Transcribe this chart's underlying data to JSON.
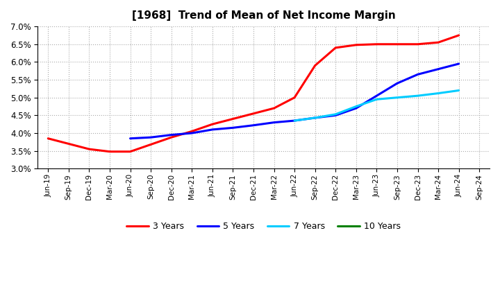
{
  "title": "[1968]  Trend of Mean of Net Income Margin",
  "x_labels": [
    "Jun-19",
    "Sep-19",
    "Dec-19",
    "Mar-20",
    "Jun-20",
    "Sep-20",
    "Dec-20",
    "Mar-21",
    "Jun-21",
    "Sep-21",
    "Dec-21",
    "Mar-22",
    "Jun-22",
    "Sep-22",
    "Dec-22",
    "Mar-23",
    "Jun-23",
    "Sep-23",
    "Dec-23",
    "Mar-24",
    "Jun-24",
    "Sep-24"
  ],
  "ylim": [
    0.03,
    0.07
  ],
  "yticks": [
    0.03,
    0.035,
    0.04,
    0.045,
    0.05,
    0.055,
    0.06,
    0.065,
    0.07
  ],
  "series": {
    "3 Years": {
      "color": "#FF0000",
      "values": [
        0.0385,
        0.037,
        0.0355,
        0.0348,
        0.0348,
        0.0368,
        0.0388,
        0.0405,
        0.0425,
        0.044,
        0.0455,
        0.047,
        0.05,
        0.059,
        0.064,
        0.0648,
        0.065,
        0.065,
        0.065,
        0.0655,
        0.0675,
        null
      ]
    },
    "5 Years": {
      "color": "#0000FF",
      "values": [
        null,
        null,
        null,
        null,
        0.0385,
        0.0388,
        0.0395,
        0.04,
        0.041,
        0.0415,
        0.0422,
        0.043,
        0.0435,
        0.0443,
        0.045,
        0.047,
        0.0505,
        0.054,
        0.0565,
        0.058,
        0.0595,
        null
      ]
    },
    "7 Years": {
      "color": "#00CCFF",
      "values": [
        null,
        null,
        null,
        null,
        null,
        null,
        null,
        null,
        null,
        null,
        null,
        null,
        0.0435,
        0.0443,
        0.0453,
        0.0475,
        0.0495,
        0.05,
        0.0505,
        0.0512,
        0.052,
        null
      ]
    },
    "10 Years": {
      "color": "#008000",
      "values": [
        null,
        null,
        null,
        null,
        null,
        null,
        null,
        null,
        null,
        null,
        null,
        null,
        null,
        null,
        null,
        null,
        null,
        null,
        null,
        null,
        null,
        null
      ]
    }
  },
  "legend_order": [
    "3 Years",
    "5 Years",
    "7 Years",
    "10 Years"
  ],
  "background_color": "#FFFFFF",
  "grid_color": "#AAAAAA"
}
